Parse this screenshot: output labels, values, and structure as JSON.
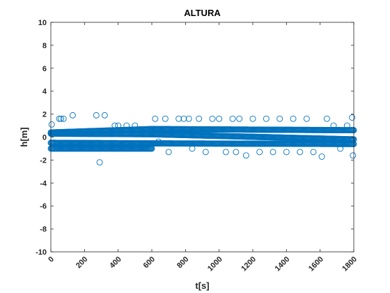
{
  "chart_data": {
    "type": "scatter",
    "title": "ALTURA",
    "xlabel": "t[s]",
    "ylabel": "h[m]",
    "xlim": [
      0,
      1800
    ],
    "ylim": [
      -10,
      10
    ],
    "xticks": [
      0,
      200,
      400,
      600,
      800,
      1000,
      1200,
      1400,
      1600,
      1800
    ],
    "yticks": [
      -10,
      -8,
      -6,
      -4,
      -2,
      0,
      2,
      4,
      6,
      8,
      10
    ],
    "xtick_labels": [
      "0",
      "200",
      "400",
      "600",
      "800",
      "1000",
      "1200",
      "1400",
      "1600",
      "1800"
    ],
    "ytick_labels": [
      "-10",
      "-8",
      "-6",
      "-4",
      "-2",
      "0",
      "2",
      "4",
      "6",
      "8",
      "10"
    ],
    "grid": false,
    "marker": "open-circle",
    "series": [
      {
        "color": "#0072BD",
        "bands": [
          {
            "x": [
              0,
              600
            ],
            "y": [
              0.4,
              0.7
            ]
          },
          {
            "x": [
              600,
              1800
            ],
            "y": [
              0.7,
              0.6
            ]
          },
          {
            "x": [
              0,
              600
            ],
            "y": [
              0.3,
              0.25
            ]
          },
          {
            "x": [
              600,
              1800
            ],
            "y": [
              0.25,
              -0.2
            ]
          },
          {
            "x": [
              0,
              600
            ],
            "y": [
              -0.5,
              -0.55
            ]
          },
          {
            "x": [
              600,
              1800
            ],
            "y": [
              -0.55,
              -0.6
            ]
          },
          {
            "x": [
              0,
              600
            ],
            "y": [
              -1.0,
              -1.0
            ]
          }
        ],
        "outliers": [
          {
            "x": 5,
            "y": 1.1
          },
          {
            "x": 50,
            "y": 1.6
          },
          {
            "x": 60,
            "y": 1.6
          },
          {
            "x": 75,
            "y": 1.6
          },
          {
            "x": 130,
            "y": 1.9
          },
          {
            "x": 140,
            "y": -0.6
          },
          {
            "x": 270,
            "y": 1.9
          },
          {
            "x": 290,
            "y": -2.2
          },
          {
            "x": 320,
            "y": 1.9
          },
          {
            "x": 380,
            "y": 1.0
          },
          {
            "x": 400,
            "y": 1.0
          },
          {
            "x": 450,
            "y": 1.0
          },
          {
            "x": 500,
            "y": 1.0
          },
          {
            "x": 620,
            "y": 1.6
          },
          {
            "x": 640,
            "y": -0.4
          },
          {
            "x": 680,
            "y": 1.6
          },
          {
            "x": 700,
            "y": -1.3
          },
          {
            "x": 760,
            "y": 1.6
          },
          {
            "x": 790,
            "y": 1.6
          },
          {
            "x": 820,
            "y": 1.6
          },
          {
            "x": 840,
            "y": -1.0
          },
          {
            "x": 880,
            "y": 1.6
          },
          {
            "x": 920,
            "y": -1.3
          },
          {
            "x": 960,
            "y": 1.6
          },
          {
            "x": 1000,
            "y": 1.6
          },
          {
            "x": 1040,
            "y": -1.3
          },
          {
            "x": 1080,
            "y": 1.6
          },
          {
            "x": 1100,
            "y": -1.3
          },
          {
            "x": 1120,
            "y": 1.6
          },
          {
            "x": 1160,
            "y": -1.6
          },
          {
            "x": 1200,
            "y": 1.6
          },
          {
            "x": 1240,
            "y": -1.3
          },
          {
            "x": 1280,
            "y": 1.6
          },
          {
            "x": 1320,
            "y": -1.3
          },
          {
            "x": 1360,
            "y": 1.6
          },
          {
            "x": 1400,
            "y": -1.3
          },
          {
            "x": 1440,
            "y": 1.6
          },
          {
            "x": 1480,
            "y": -1.3
          },
          {
            "x": 1520,
            "y": 1.6
          },
          {
            "x": 1560,
            "y": -1.3
          },
          {
            "x": 1610,
            "y": -1.7
          },
          {
            "x": 1640,
            "y": 1.6
          },
          {
            "x": 1680,
            "y": 1.0
          },
          {
            "x": 1720,
            "y": -1.0
          },
          {
            "x": 1760,
            "y": 1.0
          },
          {
            "x": 1790,
            "y": 1.7
          },
          {
            "x": 1795,
            "y": -1.6
          },
          {
            "x": 1790,
            "y": -0.3
          }
        ]
      }
    ]
  }
}
